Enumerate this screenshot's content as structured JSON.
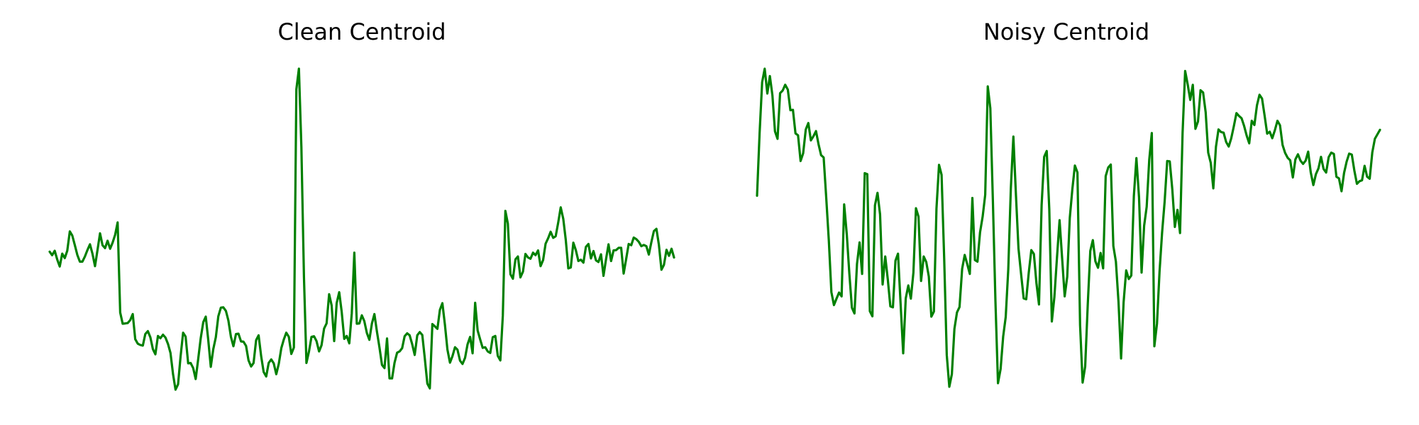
{
  "chart_data": [
    {
      "type": "line",
      "title": "Clean Centroid",
      "xlabel": "",
      "ylabel": "",
      "grid": false,
      "axes_visible": false,
      "ylim": [
        0,
        100
      ],
      "series": [
        {
          "color": "#008000",
          "values": [
            43.1,
            42.0,
            43.4,
            40.7,
            38.5,
            42.5,
            41.1,
            43.4,
            49.4,
            48.1,
            45.1,
            42.1,
            40.0,
            40.0,
            41.6,
            43.6,
            45.4,
            42.5,
            38.6,
            43.6,
            48.8,
            45.1,
            44.2,
            46.5,
            44.0,
            45.9,
            48.4,
            52.2,
            24.2,
            20.7,
            20.8,
            20.9,
            21.8,
            23.7,
            15.9,
            14.5,
            14.1,
            13.9,
            17.5,
            18.4,
            16.5,
            12.8,
            11.2,
            16.9,
            16.2,
            17.3,
            16.4,
            14.4,
            11.6,
            5.0,
            0.2,
            1.9,
            10.5,
            17.9,
            16.7,
            8.4,
            8.5,
            6.9,
            3.5,
            9.8,
            16.2,
            21.2,
            22.9,
            15.7,
            7.3,
            12.8,
            16.5,
            23.0,
            25.7,
            25.8,
            24.7,
            21.7,
            16.6,
            13.7,
            17.5,
            17.6,
            15.2,
            15.1,
            13.8,
            9.3,
            7.4,
            8.5,
            15.6,
            17.1,
            10.6,
            5.7,
            4.3,
            8.5,
            9.6,
            8.4,
            5.0,
            8.2,
            13.1,
            15.8,
            17.9,
            16.6,
            11.3,
            13.3,
            93.6,
            100.0,
            75.5,
            35.3,
            8.5,
            12.1,
            16.6,
            16.8,
            15.3,
            12.1,
            14.0,
            19.2,
            20.8,
            29.9,
            26.4,
            15.3,
            27.1,
            30.5,
            24.4,
            16.0,
            16.9,
            14.6,
            23.9,
            42.8,
            20.7,
            20.8,
            23.3,
            21.5,
            17.8,
            15.7,
            20.8,
            23.7,
            18.2,
            13.4,
            7.9,
            6.9,
            16.1,
            3.7,
            3.7,
            8.6,
            11.7,
            12.1,
            13.1,
            16.8,
            17.7,
            17.1,
            14.3,
            11.0,
            17.1,
            18.1,
            17.2,
            10.0,
            2.1,
            0.6,
            20.6,
            19.9,
            19.1,
            25.0,
            27.1,
            20.4,
            12.7,
            8.6,
            10.6,
            13.4,
            12.6,
            9.2,
            8.2,
            10.1,
            14.3,
            16.6,
            11.5,
            27.2,
            18.6,
            15.8,
            13.2,
            13.4,
            12.1,
            11.6,
            16.5,
            16.9,
            10.7,
            9.3,
            23.2,
            55.8,
            51.8,
            36.1,
            34.7,
            40.7,
            41.6,
            35.1,
            36.9,
            42.4,
            41.3,
            40.9,
            42.8,
            42.0,
            43.5,
            38.6,
            40.5,
            45.6,
            47.3,
            49.3,
            47.4,
            47.9,
            52.2,
            56.9,
            53.3,
            46.8,
            37.9,
            38.2,
            45.9,
            43.6,
            40.2,
            40.6,
            39.7,
            44.6,
            45.5,
            41.0,
            43.3,
            40.4,
            39.9,
            42.3,
            35.6,
            40.8,
            45.4,
            40.2,
            43.5,
            43.6,
            44.3,
            44.3,
            36.3,
            40.9,
            45.5,
            45.1,
            47.5,
            47.0,
            46.2,
            44.8,
            45.2,
            44.8,
            42.2,
            46.1,
            49.5,
            50.2,
            45.2,
            37.5,
            39.0,
            43.7,
            41.8,
            44.0,
            41.3
          ]
        }
      ]
    },
    {
      "type": "line",
      "title": "Noisy Centroid",
      "xlabel": "",
      "ylabel": "",
      "grid": false,
      "axes_visible": false,
      "ylim": [
        0,
        100
      ],
      "series": [
        {
          "color": "#008000",
          "values": [
            60.5,
            79.9,
            95.8,
            100.0,
            92.3,
            97.7,
            91.7,
            80.5,
            78.2,
            92.4,
            93.2,
            95.0,
            93.5,
            87.1,
            87.2,
            79.9,
            79.3,
            71.3,
            73.7,
            81.1,
            83.1,
            77.7,
            79.0,
            80.6,
            76.5,
            73.1,
            72.4,
            59.6,
            46.5,
            30.5,
            26.5,
            28.5,
            30.4,
            29.2,
            57.8,
            48.5,
            36.3,
            25.7,
            23.9,
            39.3,
            46.0,
            36.2,
            67.5,
            67.2,
            24.6,
            23.0,
            57.5,
            61.4,
            54.7,
            32.9,
            41.6,
            34.5,
            26.1,
            25.8,
            40.3,
            42.5,
            27.1,
            11.5,
            28.6,
            32.6,
            28.5,
            36.6,
            56.6,
            54.0,
            34.0,
            41.6,
            39.9,
            35.4,
            22.9,
            24.5,
            56.5,
            70.1,
            67.0,
            40.8,
            11.0,
            1.1,
            5.0,
            19.1,
            24.2,
            25.9,
            37.8,
            42.1,
            39.2,
            36.2,
            59.8,
            40.5,
            40.0,
            49.1,
            54.0,
            60.8,
            94.5,
            87.7,
            59.0,
            27.8,
            2.2,
            6.6,
            16.7,
            22.8,
            37.6,
            62.7,
            78.9,
            60.8,
            44.1,
            36.1,
            28.6,
            28.3,
            36.6,
            43.6,
            42.4,
            33.3,
            26.7,
            57.6,
            72.6,
            74.4,
            56.3,
            21.4,
            29.0,
            41.1,
            52.9,
            41.1,
            29.2,
            35.3,
            53.6,
            62.5,
            69.9,
            67.7,
            20.3,
            2.4,
            7.4,
            26.5,
            43.3,
            46.7,
            40.1,
            38.1,
            42.7,
            37.9,
            66.6,
            69.3,
            70.2,
            44.9,
            40.0,
            27.4,
            9.9,
            27.5,
            37.3,
            34.6,
            35.7,
            60.4,
            72.2,
            60.0,
            36.6,
            51.2,
            57.1,
            71.7,
            80.0,
            13.7,
            20.7,
            36.9,
            49.0,
            58.7,
            71.3,
            71.2,
            62.5,
            50.8,
            56.1,
            48.9,
            80.1,
            99.3,
            95.1,
            90.3,
            95.0,
            81.3,
            83.6,
            93.3,
            92.6,
            86.5,
            73.9,
            70.7,
            62.8,
            75.7,
            81.1,
            80.3,
            80.1,
            77.2,
            75.8,
            78.4,
            82.1,
            86.2,
            85.3,
            84.6,
            82.2,
            79.2,
            76.8,
            83.8,
            82.5,
            88.6,
            91.9,
            90.7,
            85.4,
            79.8,
            80.4,
            78.4,
            80.9,
            83.8,
            82.4,
            76.3,
            73.8,
            72.3,
            71.5,
            66.2,
            71.8,
            73.4,
            71.4,
            70.4,
            71.4,
            74.2,
            67.8,
            63.8,
            67.2,
            69.0,
            72.6,
            68.8,
            67.7,
            72.5,
            73.9,
            73.5,
            66.4,
            65.9,
            61.9,
            67.6,
            71.1,
            73.6,
            73.3,
            68.3,
            64.2,
            65.0,
            65.3,
            69.8,
            66.4,
            65.8,
            74.0,
            78.2,
            79.6,
            81.0
          ]
        }
      ]
    }
  ]
}
